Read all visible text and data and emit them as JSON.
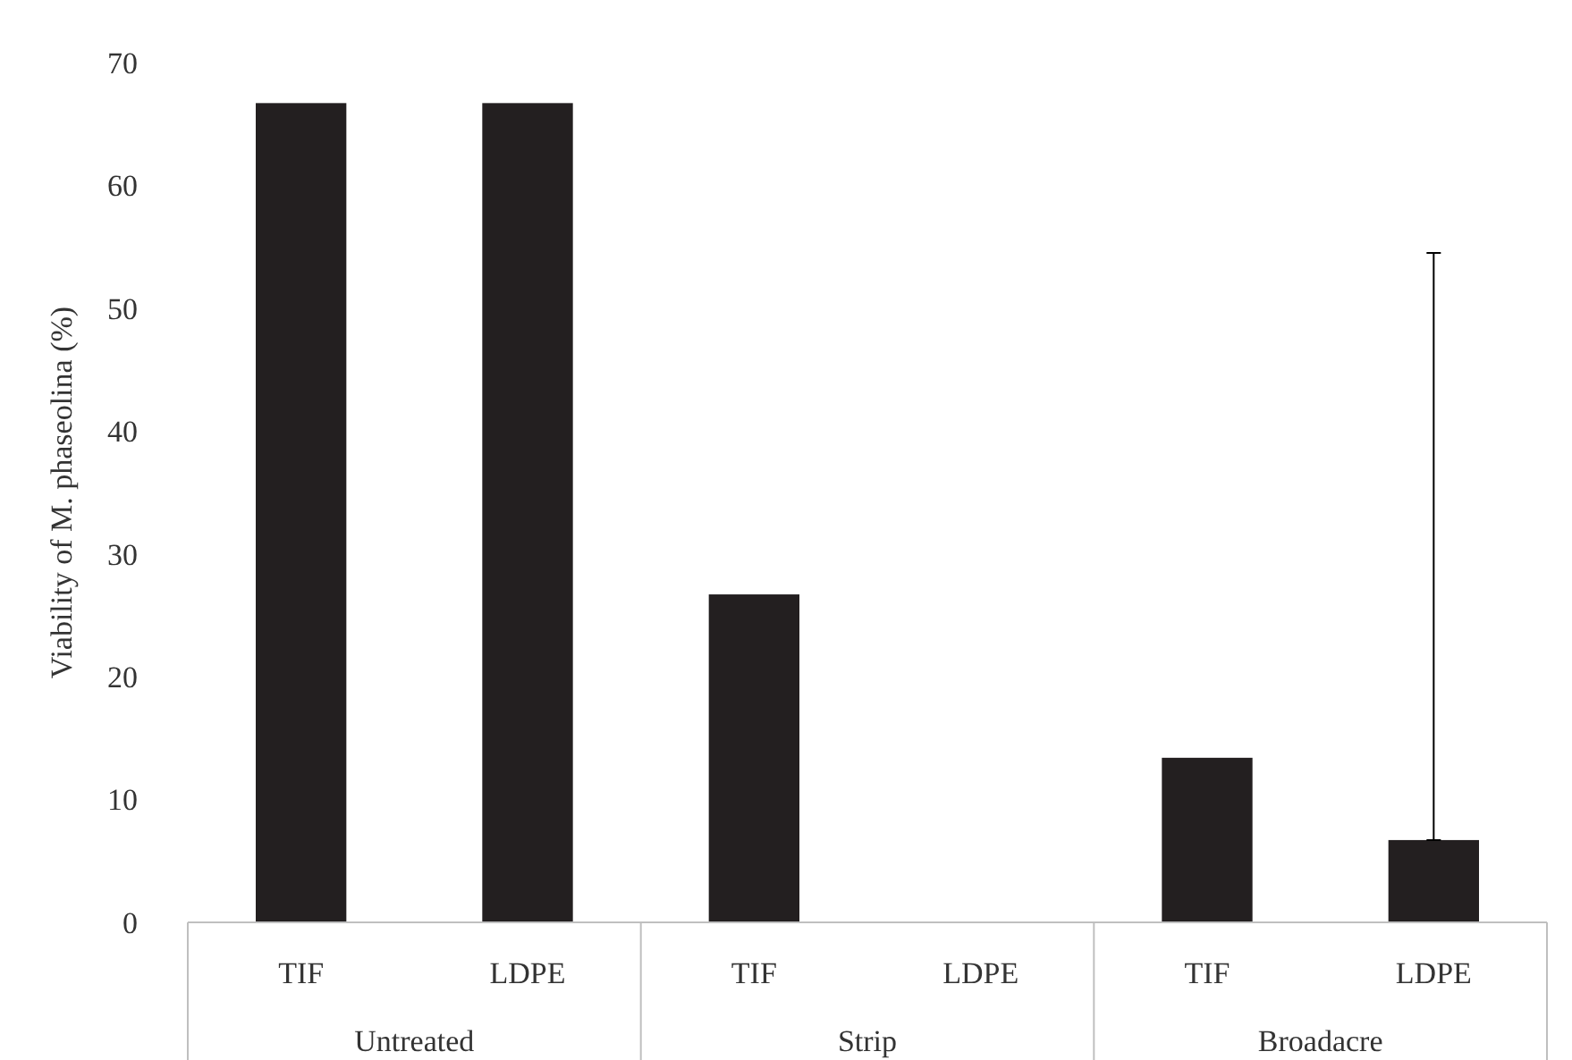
{
  "chart_data": {
    "type": "bar",
    "ylabel": "Viability of M. phaseolina (%)",
    "categories": [
      "TIF",
      "LDPE",
      "TIF",
      "LDPE",
      "TIF",
      "LDPE"
    ],
    "values": [
      66.7,
      66.7,
      26.7,
      0,
      13.4,
      6.7
    ],
    "errors": [
      null,
      null,
      null,
      null,
      null,
      [
        6.7,
        54.5
      ]
    ],
    "color": "#231f20",
    "ylim": [
      0,
      70
    ],
    "yticks": [
      0,
      10,
      20,
      30,
      40,
      50,
      60,
      70
    ],
    "annotations": [
      "Untreated",
      "Strip",
      "Broadacre"
    ]
  }
}
